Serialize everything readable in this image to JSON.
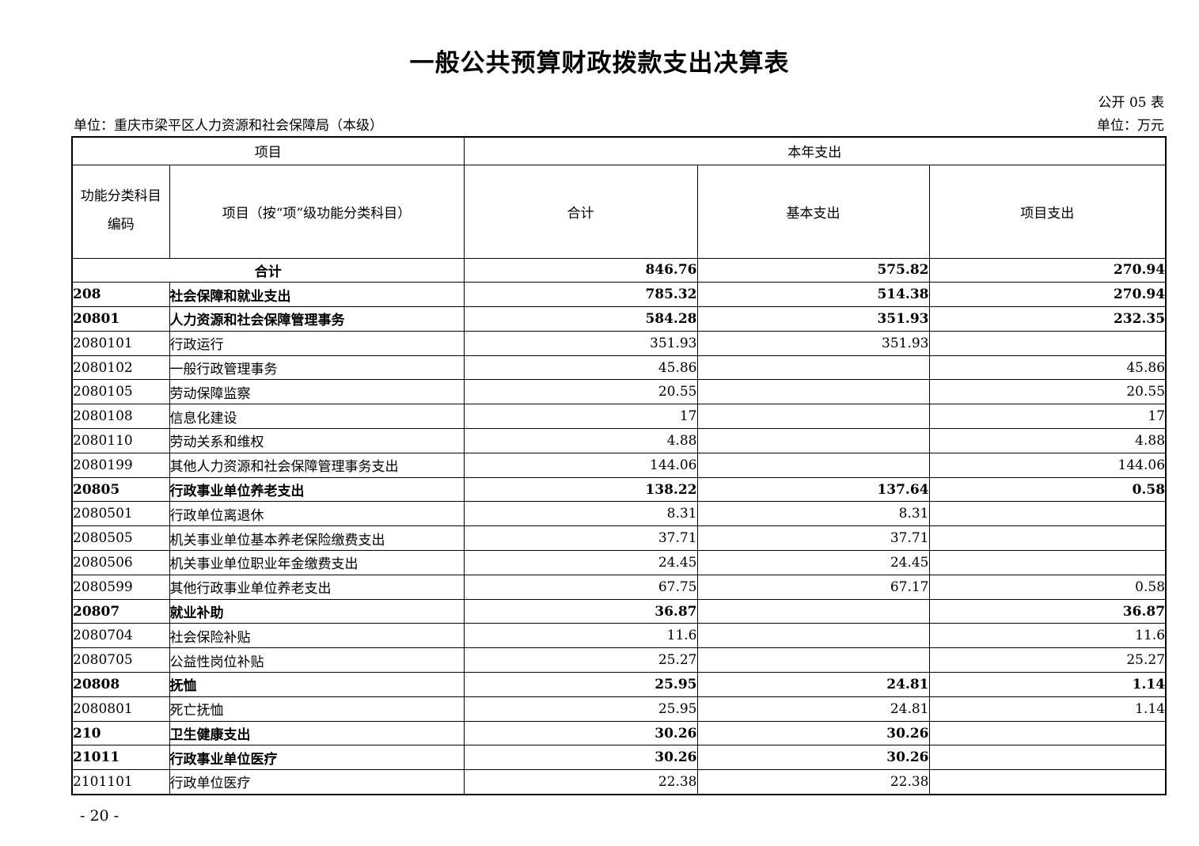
{
  "page": {
    "title": "一般公共预算财政拨款支出决算表",
    "table_no": "公开 05 表",
    "unit_left": "单位：重庆市梁平区人力资源和社会保障局（本级）",
    "unit_right": "单位：万元",
    "page_number": "- 20 -"
  },
  "table": {
    "header": {
      "group_left": "项目",
      "group_right": "本年支出",
      "col_code_line1": "功能分类科目",
      "col_code_line2": "编码",
      "col_item": "项目（按“项”级功能分类科目）",
      "col_total": "合计",
      "col_basic": "基本支出",
      "col_project": "项目支出"
    },
    "rows": [
      {
        "code": "",
        "item": "合计",
        "total": "846.76",
        "basic": "575.82",
        "project": "270.94",
        "bold": true,
        "merged": true
      },
      {
        "code": "208",
        "item": "社会保障和就业支出",
        "total": "785.32",
        "basic": "514.38",
        "project": "270.94",
        "bold": true
      },
      {
        "code": "20801",
        "item": "人力资源和社会保障管理事务",
        "total": "584.28",
        "basic": "351.93",
        "project": "232.35",
        "bold": true
      },
      {
        "code": "2080101",
        "item": "行政运行",
        "total": "351.93",
        "basic": "351.93",
        "project": ""
      },
      {
        "code": "2080102",
        "item": "一般行政管理事务",
        "total": "45.86",
        "basic": "",
        "project": "45.86"
      },
      {
        "code": "2080105",
        "item": "劳动保障监察",
        "total": "20.55",
        "basic": "",
        "project": "20.55"
      },
      {
        "code": "2080108",
        "item": "信息化建设",
        "total": "17",
        "basic": "",
        "project": "17"
      },
      {
        "code": "2080110",
        "item": "劳动关系和维权",
        "total": "4.88",
        "basic": "",
        "project": "4.88"
      },
      {
        "code": "2080199",
        "item": "其他人力资源和社会保障管理事务支出",
        "total": "144.06",
        "basic": "",
        "project": "144.06"
      },
      {
        "code": "20805",
        "item": "行政事业单位养老支出",
        "total": "138.22",
        "basic": "137.64",
        "project": "0.58",
        "bold": true
      },
      {
        "code": "2080501",
        "item": "行政单位离退休",
        "total": "8.31",
        "basic": "8.31",
        "project": ""
      },
      {
        "code": "2080505",
        "item": "机关事业单位基本养老保险缴费支出",
        "total": "37.71",
        "basic": "37.71",
        "project": ""
      },
      {
        "code": "2080506",
        "item": "机关事业单位职业年金缴费支出",
        "total": "24.45",
        "basic": "24.45",
        "project": ""
      },
      {
        "code": "2080599",
        "item": "其他行政事业单位养老支出",
        "total": "67.75",
        "basic": "67.17",
        "project": "0.58"
      },
      {
        "code": "20807",
        "item": "就业补助",
        "total": "36.87",
        "basic": "",
        "project": "36.87",
        "bold": true
      },
      {
        "code": "2080704",
        "item": "社会保险补贴",
        "total": "11.6",
        "basic": "",
        "project": "11.6"
      },
      {
        "code": "2080705",
        "item": "公益性岗位补贴",
        "total": "25.27",
        "basic": "",
        "project": "25.27"
      },
      {
        "code": "20808",
        "item": "抚恤",
        "total": "25.95",
        "basic": "24.81",
        "project": "1.14",
        "bold": true
      },
      {
        "code": "2080801",
        "item": "死亡抚恤",
        "total": "25.95",
        "basic": "24.81",
        "project": "1.14"
      },
      {
        "code": "210",
        "item": "卫生健康支出",
        "total": "30.26",
        "basic": "30.26",
        "project": "",
        "bold": true
      },
      {
        "code": "21011",
        "item": "行政事业单位医疗",
        "total": "30.26",
        "basic": "30.26",
        "project": "",
        "bold": true
      },
      {
        "code": "2101101",
        "item": "行政单位医疗",
        "total": "22.38",
        "basic": "22.38",
        "project": ""
      }
    ]
  }
}
